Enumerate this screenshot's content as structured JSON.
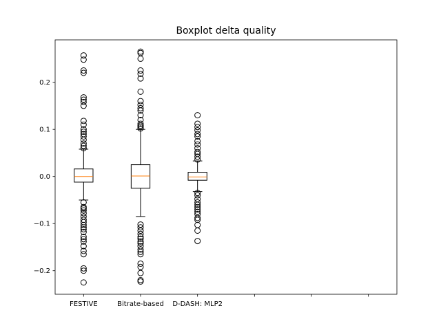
{
  "chart_data": {
    "type": "boxplot",
    "title": "Boxplot delta quality",
    "xlabel": "",
    "ylabel": "",
    "ylim": [
      -0.25,
      0.29
    ],
    "y_ticks": [
      -0.2,
      -0.1,
      0.0,
      0.1,
      0.2
    ],
    "y_tick_labels": [
      "−0.2",
      "−0.1",
      "0.0",
      "0.1",
      "0.2"
    ],
    "x_slots": 6,
    "categories": [
      "FESTIVE",
      "Bitrate-based",
      "D-DASH: MLP2"
    ],
    "boxes": [
      {
        "label": "FESTIVE",
        "whisker_low": -0.05,
        "q1": -0.012,
        "median": 0.0,
        "q3": 0.016,
        "whisker_high": 0.058,
        "outliers": [
          0.257,
          0.248,
          0.225,
          0.22,
          0.168,
          0.163,
          0.158,
          0.15,
          0.118,
          0.11,
          0.1,
          0.095,
          0.09,
          0.085,
          0.078,
          0.07,
          0.065,
          0.06,
          -0.055,
          -0.065,
          -0.068,
          -0.072,
          -0.078,
          -0.085,
          -0.092,
          -0.097,
          -0.103,
          -0.108,
          -0.112,
          -0.118,
          -0.128,
          -0.133,
          -0.138,
          -0.148,
          -0.158,
          -0.165,
          -0.195,
          -0.2,
          -0.225
        ]
      },
      {
        "label": "Bitrate-based",
        "whisker_low": -0.085,
        "q1": -0.025,
        "median": 0.001,
        "q3": 0.025,
        "whisker_high": 0.1,
        "outliers": [
          0.265,
          0.262,
          0.25,
          0.225,
          0.218,
          0.208,
          0.18,
          0.16,
          0.152,
          0.145,
          0.14,
          0.13,
          0.12,
          0.112,
          0.108,
          0.105,
          0.102,
          -0.102,
          -0.108,
          -0.115,
          -0.122,
          -0.128,
          -0.132,
          -0.138,
          -0.142,
          -0.148,
          -0.155,
          -0.16,
          -0.165,
          -0.185,
          -0.192,
          -0.205,
          -0.22,
          -0.223
        ]
      },
      {
        "label": "D-DASH: MLP2",
        "whisker_low": -0.032,
        "q1": -0.008,
        "median": -0.001,
        "q3": 0.009,
        "whisker_high": 0.033,
        "outliers": [
          0.13,
          0.112,
          0.105,
          0.098,
          0.09,
          0.085,
          0.075,
          0.068,
          0.06,
          0.052,
          0.048,
          0.042,
          0.036,
          -0.035,
          -0.04,
          -0.048,
          -0.055,
          -0.06,
          -0.065,
          -0.07,
          -0.075,
          -0.08,
          -0.088,
          -0.092,
          -0.103,
          -0.115,
          -0.137
        ]
      }
    ],
    "colors": {
      "box": "#000000",
      "median": "#ff7f0e",
      "outlier_edge": "#000000",
      "background": "#ffffff"
    }
  }
}
